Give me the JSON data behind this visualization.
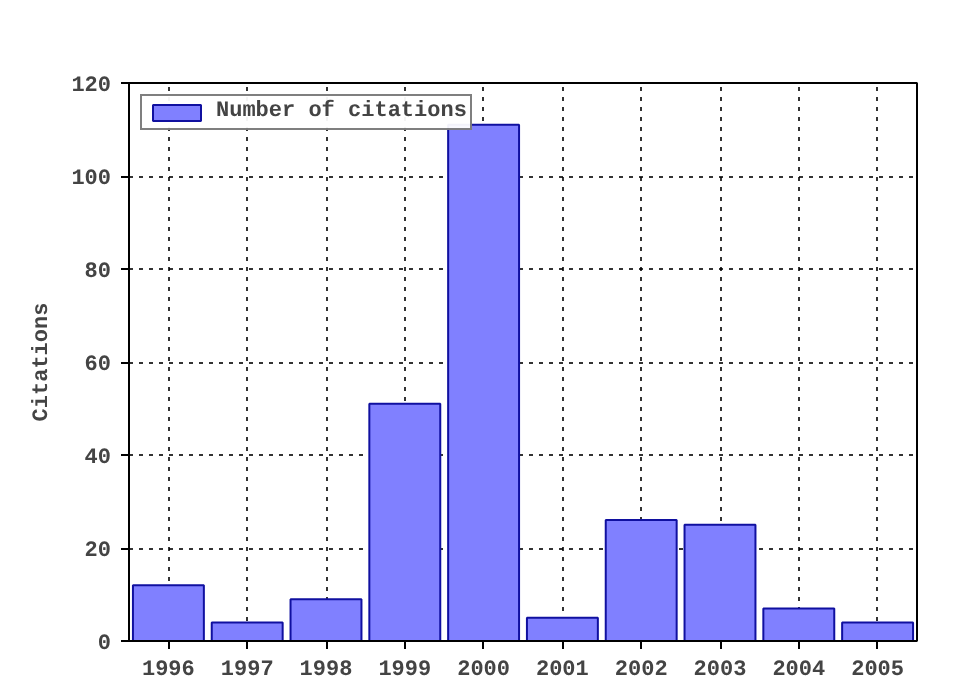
{
  "chart_data": {
    "type": "bar",
    "ylabel": "Citations",
    "x": [
      1996,
      1997,
      1998,
      1999,
      2000,
      2001,
      2002,
      2003,
      2004,
      2005
    ],
    "series": [
      {
        "name": "Number of citations",
        "color": "#8080ff",
        "values": [
          12,
          4,
          9,
          51,
          111,
          5,
          26,
          25,
          7,
          4
        ]
      }
    ],
    "xlim": [
      1995.5,
      2005.5
    ],
    "xticks": [
      1996,
      1997,
      1998,
      1999,
      2000,
      2001,
      2002,
      2003,
      2004,
      2005
    ],
    "ylim": [
      0,
      120
    ],
    "yticks": [
      0,
      20,
      40,
      60,
      80,
      100,
      120
    ],
    "grid": true,
    "legend": "top left"
  }
}
